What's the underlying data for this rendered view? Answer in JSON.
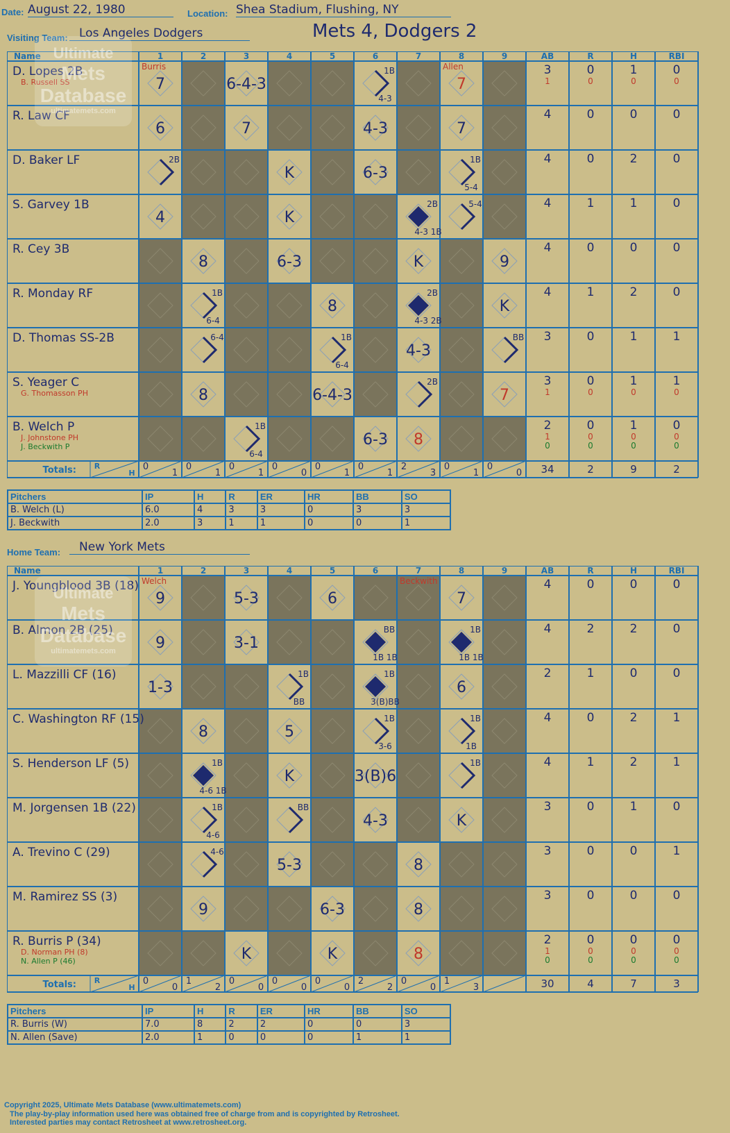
{
  "header": {
    "date_label": "Date:",
    "date": "August 22, 1980",
    "location_label": "Location:",
    "location": "Shea Stadium, Flushing, NY",
    "result": "Mets 4, Dodgers 2"
  },
  "logo": {
    "line1": "Ultimate",
    "line2": "Mets",
    "line3": "Database",
    "url": "ultimatemets.com"
  },
  "labels": {
    "name": "Name",
    "totals": "Totals:",
    "r": "R",
    "h": "H",
    "innings": [
      "1",
      "2",
      "3",
      "4",
      "5",
      "6",
      "7",
      "8",
      "9"
    ],
    "stat_cols": [
      "AB",
      "R",
      "H",
      "RBI"
    ],
    "pitchers": "Pitchers",
    "pitch_cols": [
      "IP",
      "H",
      "R",
      "ER",
      "HR",
      "BB",
      "SO"
    ]
  },
  "visiting": {
    "team_label": "Visiting Team:",
    "team": "Los Angeles Dodgers",
    "players": [
      {
        "name": "D. Lopes 2B",
        "subs": [
          {
            "name": "B. Russell SS",
            "color": "#c0392b"
          }
        ],
        "stats": [
          "3",
          "0",
          "1",
          "0"
        ],
        "sub_stats": [
          [
            "1",
            "0",
            "0",
            "0"
          ]
        ]
      },
      {
        "name": "R. Law CF",
        "subs": [],
        "stats": [
          "4",
          "0",
          "0",
          "0"
        ],
        "sub_stats": []
      },
      {
        "name": "D. Baker LF",
        "subs": [],
        "stats": [
          "4",
          "0",
          "2",
          "0"
        ],
        "sub_stats": []
      },
      {
        "name": "S. Garvey 1B",
        "subs": [],
        "stats": [
          "4",
          "1",
          "1",
          "0"
        ],
        "sub_stats": []
      },
      {
        "name": "R. Cey 3B",
        "subs": [],
        "stats": [
          "4",
          "0",
          "0",
          "0"
        ],
        "sub_stats": []
      },
      {
        "name": "R. Monday RF",
        "subs": [],
        "stats": [
          "4",
          "1",
          "2",
          "0"
        ],
        "sub_stats": []
      },
      {
        "name": "D. Thomas SS-2B",
        "subs": [],
        "stats": [
          "3",
          "0",
          "1",
          "1"
        ],
        "sub_stats": []
      },
      {
        "name": "S. Yeager C",
        "subs": [
          {
            "name": "G. Thomasson PH",
            "color": "#c0392b"
          }
        ],
        "stats": [
          "3",
          "0",
          "1",
          "1"
        ],
        "sub_stats": [
          [
            "1",
            "0",
            "0",
            "0"
          ]
        ]
      },
      {
        "name": "B. Welch P",
        "subs": [
          {
            "name": "J. Johnstone PH",
            "color": "#c0392b"
          },
          {
            "name": "J. Beckwith P",
            "color": "#1a7a2e"
          }
        ],
        "stats": [
          "2",
          "0",
          "1",
          "0"
        ],
        "sub_stats": [
          [
            "1",
            "0",
            "0",
            "0"
          ],
          [
            "0",
            "0",
            "0",
            "0"
          ]
        ]
      }
    ],
    "innings": [
      [
        "0",
        "1"
      ],
      [
        "0",
        "1"
      ],
      [
        "0",
        "1"
      ],
      [
        "0",
        "0"
      ],
      [
        "0",
        "1"
      ],
      [
        "0",
        "1"
      ],
      [
        "2",
        "3"
      ],
      [
        "0",
        "1"
      ],
      [
        "0",
        "0"
      ]
    ],
    "totals": [
      "34",
      "2",
      "9",
      "2"
    ],
    "pitchers": [
      {
        "name": "B. Welch (L)",
        "stats": [
          "6.0",
          "4",
          "3",
          "3",
          "0",
          "3",
          "3"
        ]
      },
      {
        "name": "J. Beckwith",
        "stats": [
          "2.0",
          "3",
          "1",
          "1",
          "0",
          "0",
          "1"
        ]
      }
    ],
    "plays": [
      {
        "r": 0,
        "c": 0,
        "t": "7"
      },
      {
        "r": 0,
        "c": 2,
        "t": "6-4-3"
      },
      {
        "r": 0,
        "c": 5,
        "t": "",
        "hit": "1B",
        "hit2": "4-3"
      },
      {
        "r": 0,
        "c": 7,
        "t": "7",
        "red": true
      },
      {
        "r": 1,
        "c": 0,
        "t": "6"
      },
      {
        "r": 1,
        "c": 2,
        "t": "7"
      },
      {
        "r": 1,
        "c": 5,
        "t": "4-3"
      },
      {
        "r": 1,
        "c": 7,
        "t": "7"
      },
      {
        "r": 2,
        "c": 0,
        "t": "",
        "hit": "2B"
      },
      {
        "r": 2,
        "c": 3,
        "t": "K"
      },
      {
        "r": 2,
        "c": 5,
        "t": "6-3"
      },
      {
        "r": 2,
        "c": 7,
        "t": "",
        "hit": "1B",
        "hit2": "5-4"
      },
      {
        "r": 3,
        "c": 0,
        "t": "4"
      },
      {
        "r": 3,
        "c": 3,
        "t": "K"
      },
      {
        "r": 3,
        "c": 6,
        "t": "",
        "run": true,
        "hit": "2B",
        "hit2": "4-3 1B"
      },
      {
        "r": 3,
        "c": 7,
        "t": "",
        "hit": "5-4"
      },
      {
        "r": 4,
        "c": 1,
        "t": "8"
      },
      {
        "r": 4,
        "c": 3,
        "t": "6-3"
      },
      {
        "r": 4,
        "c": 6,
        "t": "K"
      },
      {
        "r": 4,
        "c": 8,
        "t": "9"
      },
      {
        "r": 5,
        "c": 1,
        "t": "",
        "hit": "1B",
        "hit2": "6-4"
      },
      {
        "r": 5,
        "c": 4,
        "t": "8"
      },
      {
        "r": 5,
        "c": 6,
        "t": "",
        "run": true,
        "hit": "2B",
        "hit2": "4-3 2B"
      },
      {
        "r": 5,
        "c": 8,
        "t": "K"
      },
      {
        "r": 6,
        "c": 1,
        "t": "",
        "hit": "6-4"
      },
      {
        "r": 6,
        "c": 4,
        "t": "",
        "hit": "1B",
        "hit2": "6-4"
      },
      {
        "r": 6,
        "c": 6,
        "t": "4-3"
      },
      {
        "r": 6,
        "c": 8,
        "t": "",
        "hit": "BB"
      },
      {
        "r": 7,
        "c": 1,
        "t": "8"
      },
      {
        "r": 7,
        "c": 4,
        "t": "6-4-3"
      },
      {
        "r": 7,
        "c": 6,
        "t": "",
        "hit": "2B"
      },
      {
        "r": 7,
        "c": 8,
        "t": "7",
        "red": true
      },
      {
        "r": 8,
        "c": 2,
        "t": "",
        "hit": "1B",
        "hit2": "6-4"
      },
      {
        "r": 8,
        "c": 5,
        "t": "6-3"
      },
      {
        "r": 8,
        "c": 6,
        "t": "8",
        "red": true
      }
    ],
    "notes": [
      {
        "c": 0,
        "t": "Burris"
      },
      {
        "c": 7,
        "t": "Allen"
      }
    ]
  },
  "home": {
    "team_label": "Home Team:",
    "team": "New York Mets",
    "players": [
      {
        "name": "J. Youngblood 3B (18)",
        "subs": [],
        "stats": [
          "4",
          "0",
          "0",
          "0"
        ],
        "sub_stats": []
      },
      {
        "name": "B. Almon 2B (25)",
        "subs": [],
        "stats": [
          "4",
          "2",
          "2",
          "0"
        ],
        "sub_stats": []
      },
      {
        "name": "L. Mazzilli CF (16)",
        "subs": [],
        "stats": [
          "2",
          "1",
          "0",
          "0"
        ],
        "sub_stats": []
      },
      {
        "name": "C. Washington RF (15)",
        "subs": [],
        "stats": [
          "4",
          "0",
          "2",
          "1"
        ],
        "sub_stats": []
      },
      {
        "name": "S. Henderson LF (5)",
        "subs": [],
        "stats": [
          "4",
          "1",
          "2",
          "1"
        ],
        "sub_stats": []
      },
      {
        "name": "M. Jorgensen 1B (22)",
        "subs": [],
        "stats": [
          "3",
          "0",
          "1",
          "0"
        ],
        "sub_stats": []
      },
      {
        "name": "A. Trevino C (29)",
        "subs": [],
        "stats": [
          "3",
          "0",
          "0",
          "1"
        ],
        "sub_stats": []
      },
      {
        "name": "M. Ramirez SS (3)",
        "subs": [],
        "stats": [
          "3",
          "0",
          "0",
          "0"
        ],
        "sub_stats": []
      },
      {
        "name": "R. Burris P (34)",
        "subs": [
          {
            "name": "D. Norman PH (8)",
            "color": "#c0392b"
          },
          {
            "name": "N. Allen P (46)",
            "color": "#1a7a2e"
          }
        ],
        "stats": [
          "2",
          "0",
          "0",
          "0"
        ],
        "sub_stats": [
          [
            "1",
            "0",
            "0",
            "0"
          ],
          [
            "0",
            "0",
            "0",
            "0"
          ]
        ]
      }
    ],
    "innings": [
      [
        "0",
        "0"
      ],
      [
        "1",
        "2"
      ],
      [
        "0",
        "0"
      ],
      [
        "0",
        "0"
      ],
      [
        "0",
        "0"
      ],
      [
        "2",
        "2"
      ],
      [
        "0",
        "0"
      ],
      [
        "1",
        "3"
      ],
      [
        "",
        ""
      ]
    ],
    "totals": [
      "30",
      "4",
      "7",
      "3"
    ],
    "pitchers": [
      {
        "name": "R. Burris (W)",
        "stats": [
          "7.0",
          "8",
          "2",
          "2",
          "0",
          "0",
          "3"
        ]
      },
      {
        "name": "N. Allen (Save)",
        "stats": [
          "2.0",
          "1",
          "0",
          "0",
          "0",
          "1",
          "1"
        ]
      }
    ],
    "plays": [
      {
        "r": 0,
        "c": 0,
        "t": "9"
      },
      {
        "r": 0,
        "c": 2,
        "t": "5-3"
      },
      {
        "r": 0,
        "c": 4,
        "t": "6"
      },
      {
        "r": 0,
        "c": 7,
        "t": "7"
      },
      {
        "r": 1,
        "c": 0,
        "t": "9"
      },
      {
        "r": 1,
        "c": 2,
        "t": "3-1"
      },
      {
        "r": 1,
        "c": 5,
        "t": "",
        "run": true,
        "hit": "BB",
        "hit2": "1B 1B"
      },
      {
        "r": 1,
        "c": 7,
        "t": "",
        "run": true,
        "hit": "1B",
        "hit2": "1B 1B"
      },
      {
        "r": 2,
        "c": 0,
        "t": "1-3"
      },
      {
        "r": 2,
        "c": 3,
        "t": "",
        "hit": "1B",
        "hit2": "BB"
      },
      {
        "r": 2,
        "c": 5,
        "t": "",
        "run": true,
        "hit": "1B",
        "hit2": "3(B)BB"
      },
      {
        "r": 2,
        "c": 7,
        "t": "6"
      },
      {
        "r": 3,
        "c": 1,
        "t": "8"
      },
      {
        "r": 3,
        "c": 3,
        "t": "5"
      },
      {
        "r": 3,
        "c": 5,
        "t": "",
        "hit": "1B",
        "hit2": "3-6"
      },
      {
        "r": 3,
        "c": 7,
        "t": "",
        "hit": "1B",
        "hit2": "1B"
      },
      {
        "r": 4,
        "c": 1,
        "t": "",
        "run": true,
        "hit": "1B",
        "hit2": "4-6 1B"
      },
      {
        "r": 4,
        "c": 3,
        "t": "K"
      },
      {
        "r": 4,
        "c": 5,
        "t": "3(B)6"
      },
      {
        "r": 4,
        "c": 7,
        "t": "",
        "hit": "1B"
      },
      {
        "r": 5,
        "c": 1,
        "t": "",
        "hit": "1B",
        "hit2": "4-6"
      },
      {
        "r": 5,
        "c": 3,
        "t": "",
        "hit": "BB"
      },
      {
        "r": 5,
        "c": 5,
        "t": "4-3"
      },
      {
        "r": 5,
        "c": 7,
        "t": "K"
      },
      {
        "r": 6,
        "c": 1,
        "t": "",
        "hit": "4-6"
      },
      {
        "r": 6,
        "c": 3,
        "t": "5-3"
      },
      {
        "r": 6,
        "c": 6,
        "t": "8"
      },
      {
        "r": 7,
        "c": 1,
        "t": "9"
      },
      {
        "r": 7,
        "c": 4,
        "t": "6-3"
      },
      {
        "r": 7,
        "c": 6,
        "t": "8"
      },
      {
        "r": 8,
        "c": 2,
        "t": "K"
      },
      {
        "r": 8,
        "c": 4,
        "t": "K"
      },
      {
        "r": 8,
        "c": 6,
        "t": "8",
        "red": true
      }
    ],
    "notes": [
      {
        "c": 0,
        "t": "Welch"
      },
      {
        "c": 6,
        "t": "Beckwith"
      }
    ]
  },
  "footer": {
    "copyright": "Copyright 2025, Ultimate Mets Database (www.ultimatemets.com)",
    "line2": "The play-by-play information used here was obtained free of charge from and is copyrighted by Retrosheet.",
    "line3": "Interested parties may contact Retrosheet at www.retrosheet.org."
  },
  "colors": {
    "grid": "#1e6fb0",
    "ink": "#1e2a6e",
    "paper": "#cbbd8a",
    "shade": "#7a745c",
    "red": "#c0392b",
    "green": "#1a7a2e"
  }
}
